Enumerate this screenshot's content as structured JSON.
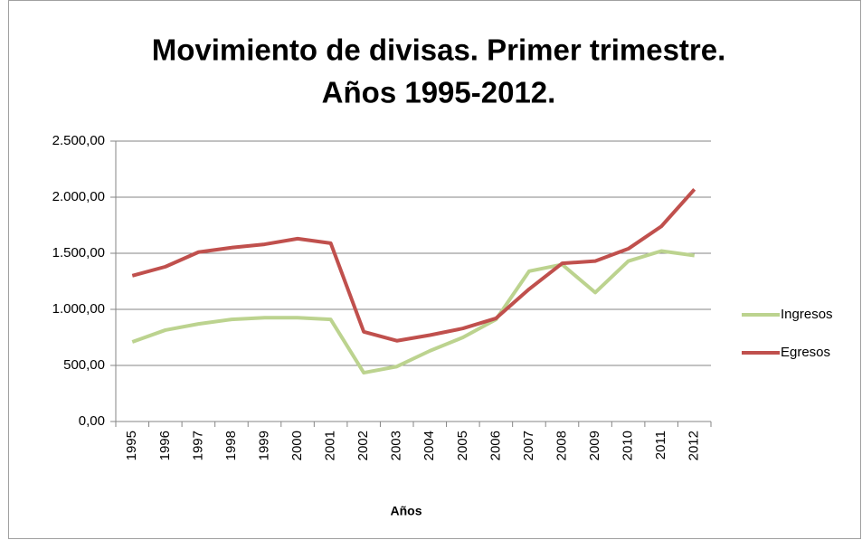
{
  "chart_data": {
    "type": "line",
    "title": [
      "Movimiento de divisas. Primer trimestre.",
      "Años 1995-2012."
    ],
    "x_label": "Años",
    "categories": [
      "1995",
      "1996",
      "1997",
      "1998",
      "1999",
      "2000",
      "2001",
      "2002",
      "2003",
      "2004",
      "2005",
      "2006",
      "2007",
      "2008",
      "2009",
      "2010",
      "2011",
      "2012"
    ],
    "series": [
      {
        "name": "Ingresos",
        "color": "#bcd38f",
        "values": [
          710,
          815,
          870,
          910,
          925,
          925,
          910,
          435,
          490,
          630,
          750,
          910,
          1340,
          1400,
          1150,
          1430,
          1520,
          1480
        ]
      },
      {
        "name": "Egresos",
        "color": "#c0504d",
        "values": [
          1300,
          1380,
          1510,
          1550,
          1580,
          1630,
          1590,
          800,
          720,
          770,
          830,
          920,
          1180,
          1410,
          1430,
          1540,
          1740,
          2070
        ]
      }
    ],
    "ylim": [
      0,
      2500
    ],
    "yticks": [
      {
        "value": 0,
        "label": "0,00"
      },
      {
        "value": 500,
        "label": "500,00"
      },
      {
        "value": 1000,
        "label": "1.000,00"
      },
      {
        "value": 1500,
        "label": "1.500,00"
      },
      {
        "value": 2000,
        "label": "2.000,00"
      },
      {
        "value": 2500,
        "label": "2.500,00"
      }
    ],
    "grid": true,
    "legend": "right"
  }
}
